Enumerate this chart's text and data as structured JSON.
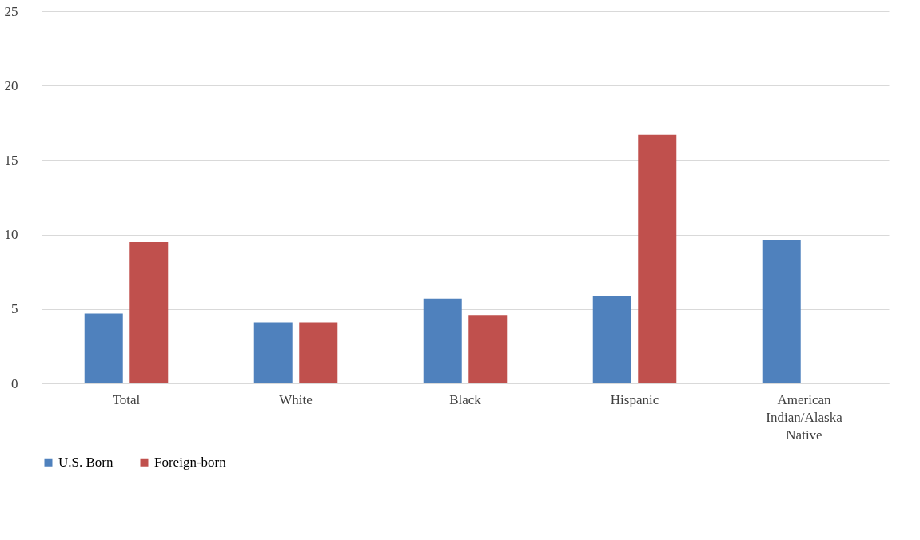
{
  "chart_data": {
    "type": "bar",
    "categories": [
      "Total",
      "White",
      "Black",
      "Hispanic",
      "American Indian/Alaska Native"
    ],
    "series": [
      {
        "name": "U.S. Born",
        "color": "#4f81bd",
        "values": [
          4.7,
          4.1,
          5.7,
          5.9,
          9.6
        ]
      },
      {
        "name": "Foreign-born",
        "color": "#c0504d",
        "values": [
          9.5,
          4.1,
          4.6,
          16.7,
          null
        ]
      }
    ],
    "ylim": [
      0,
      25
    ],
    "yticks": [
      0,
      5,
      10,
      15,
      20,
      25
    ],
    "grid": "y",
    "legend": "bottom"
  }
}
